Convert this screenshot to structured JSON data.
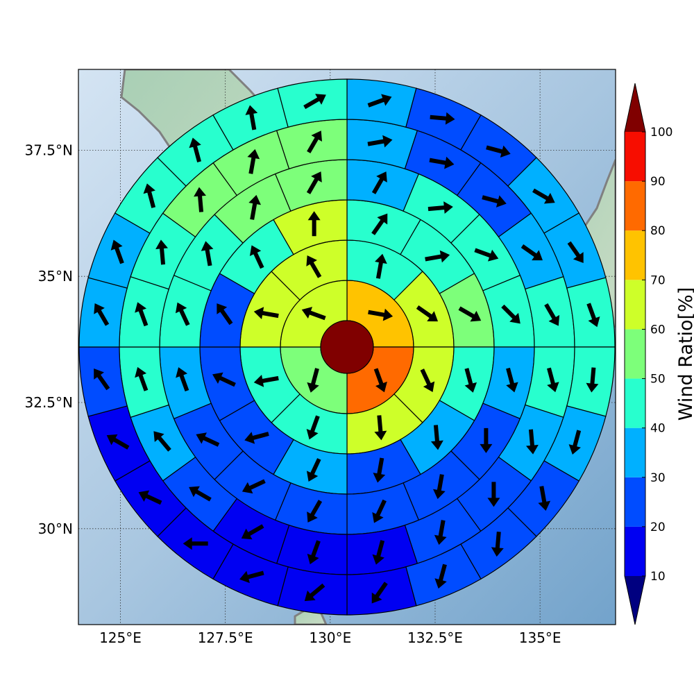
{
  "chart_data": {
    "type": "polar-sector-heatmap-with-vectors",
    "map_extent": {
      "lon": [
        124.0,
        136.8
      ],
      "lat": [
        28.1,
        39.1
      ]
    },
    "center": {
      "lon": 130.4,
      "lat": 33.6
    },
    "x_ticks": [
      {
        "value": 125.0,
        "label": "125°E"
      },
      {
        "value": 127.5,
        "label": "127.5°E"
      },
      {
        "value": 130.0,
        "label": "130°E"
      },
      {
        "value": 132.5,
        "label": "132.5°E"
      },
      {
        "value": 135.0,
        "label": "135°E"
      }
    ],
    "y_ticks": [
      {
        "value": 30.0,
        "label": "30°N"
      },
      {
        "value": 32.5,
        "label": "32.5°N"
      },
      {
        "value": 35.0,
        "label": "35°N"
      },
      {
        "value": 37.5,
        "label": "37.5°N"
      }
    ],
    "center_value": 100,
    "rings": [
      {
        "sectors": 4,
        "values": [
          75,
          85,
          53,
          62
        ],
        "directions": [
          100,
          160,
          195,
          290
        ]
      },
      {
        "sectors": 8,
        "values": [
          48,
          63,
          65,
          62,
          45,
          42,
          62,
          68
        ],
        "directions": [
          10,
          125,
          155,
          175,
          200,
          260,
          280,
          330
        ]
      },
      {
        "sectors": 12,
        "values": [
          44,
          43,
          55,
          43,
          35,
          27,
          33,
          25,
          22,
          24,
          42,
          62
        ],
        "directions": [
          35,
          80,
          120,
          165,
          175,
          190,
          205,
          255,
          295,
          325,
          335,
          360
        ]
      },
      {
        "sectors": 16,
        "values": [
          33,
          44,
          45,
          43,
          33,
          24,
          23,
          23,
          24,
          24,
          24,
          33,
          44,
          44,
          57,
          55
        ],
        "directions": [
          30,
          85,
          110,
          135,
          165,
          180,
          190,
          205,
          210,
          245,
          295,
          340,
          335,
          350,
          10,
          30
        ]
      },
      {
        "sectors": 20,
        "values": [
          35,
          25,
          28,
          36,
          42,
          42,
          36,
          24,
          24,
          17,
          16,
          17,
          23,
          36,
          44,
          45,
          45,
          55,
          55,
          55
        ],
        "directions": [
          80,
          100,
          105,
          125,
          150,
          165,
          175,
          180,
          190,
          195,
          200,
          240,
          300,
          320,
          340,
          340,
          355,
          355,
          10,
          30
        ]
      },
      {
        "sectors": 24,
        "values": [
          37,
          23,
          24,
          33,
          38,
          46,
          42,
          36,
          24,
          22,
          22,
          15,
          15,
          14,
          18,
          17,
          16,
          26,
          33,
          36,
          48,
          46,
          44,
          44
        ],
        "directions": [
          70,
          95,
          105,
          120,
          145,
          160,
          185,
          195,
          170,
          185,
          195,
          215,
          230,
          255,
          270,
          295,
          300,
          325,
          330,
          340,
          345,
          345,
          350,
          60
        ]
      }
    ],
    "colorbar": {
      "label": "Wind Ratio[%]",
      "ticks": [
        10,
        20,
        30,
        40,
        50,
        60,
        70,
        80,
        90,
        100
      ],
      "colors": [
        "#000080",
        "#0000f2",
        "#004cff",
        "#00b0ff",
        "#28ffce",
        "#7dff7a",
        "#ceff29",
        "#ffc300",
        "#ff6a00",
        "#f70d00",
        "#800000"
      ]
    },
    "colors": {
      "coastline": "#808080",
      "grid": "#303030",
      "sector_edge": "#000000",
      "arrow": "#000000"
    }
  }
}
